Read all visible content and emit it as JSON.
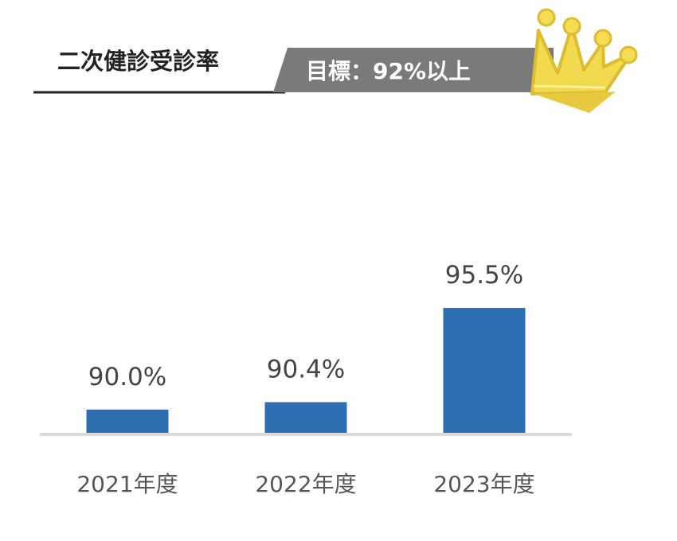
{
  "header": {
    "title": "二次健診受診率",
    "target_label": "目標：92%以上"
  },
  "colors": {
    "bar": "#2e6fb2",
    "baseline": "#d9d9d9",
    "title_underline": "#222222",
    "target_banner": "#7a7a7a",
    "crown": "#f2da4e"
  },
  "icons": {
    "crown": "crown-icon"
  },
  "chart_data": {
    "type": "bar",
    "title": "二次健診受診率",
    "categories": [
      "2021年度",
      "2022年度",
      "2023年度"
    ],
    "values": [
      90.0,
      90.4,
      95.5
    ],
    "value_labels": [
      "90.0%",
      "90.4%",
      "95.5%"
    ],
    "ylim": [
      88.7,
      95.5
    ],
    "xlabel": "",
    "ylabel": "",
    "grid": false,
    "legend": "none",
    "annotations": [
      "目標：92%以上"
    ]
  }
}
